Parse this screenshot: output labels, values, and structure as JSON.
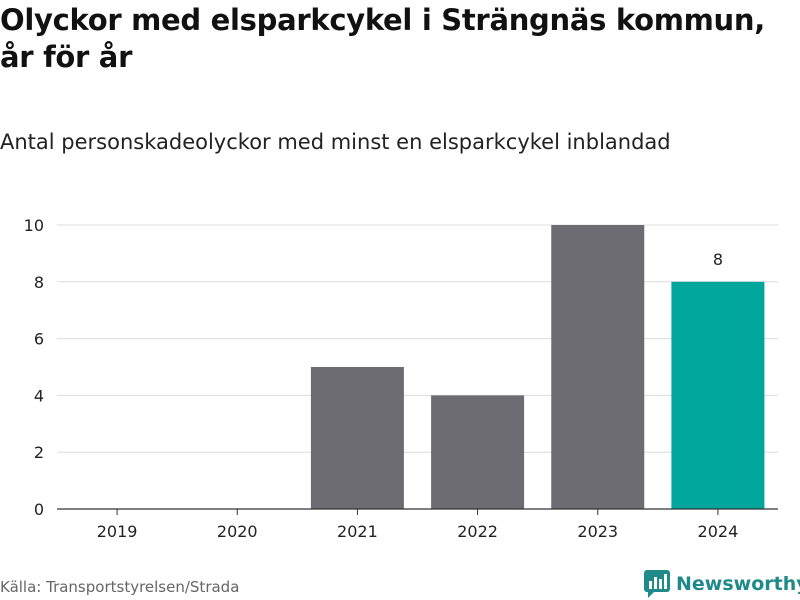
{
  "title": "Olyckor med elsparkcykel i Strängnäs kommun, år för år",
  "subtitle": "Antal personskadeolyckor med minst en elsparkcykel inblandad",
  "source": "Källa: Transportstyrelsen/Strada",
  "logo_text": "Newsworthy",
  "colors": {
    "bar": "#6c6c72",
    "highlight": "#00a69c",
    "grid": "#dcdcdc",
    "axis": "#333333",
    "logo": "#1f8a8a"
  },
  "chart_data": {
    "type": "bar",
    "categories": [
      "2019",
      "2020",
      "2021",
      "2022",
      "2023",
      "2024"
    ],
    "values": [
      0,
      0,
      5,
      4,
      10,
      8
    ],
    "highlight_index": 5,
    "data_labels": [
      null,
      null,
      null,
      null,
      null,
      "8"
    ],
    "yticks": [
      "0",
      "2",
      "4",
      "6",
      "8",
      "10"
    ],
    "ylim": [
      0,
      10
    ],
    "grid": true
  }
}
